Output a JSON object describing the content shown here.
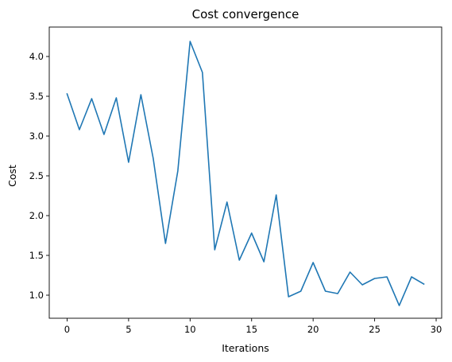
{
  "chart_data": {
    "type": "line",
    "title": "Cost convergence",
    "xlabel": "Iterations",
    "ylabel": "Cost",
    "xlim": [
      -1.45,
      30.45
    ],
    "ylim": [
      0.71,
      4.37
    ],
    "xticks": [
      0,
      5,
      10,
      15,
      20,
      25,
      30
    ],
    "yticks": [
      1.0,
      1.5,
      2.0,
      2.5,
      3.0,
      3.5,
      4.0
    ],
    "grid": false,
    "line_color": "#1f77b4",
    "series": [
      {
        "x": [
          0,
          1,
          2,
          3,
          4,
          5,
          6,
          7,
          8,
          9,
          10,
          11,
          12,
          13,
          14,
          15,
          16,
          17,
          18,
          19,
          20,
          21,
          22,
          23,
          24,
          25,
          26,
          27,
          28,
          29
        ],
        "values": [
          3.53,
          3.08,
          3.47,
          3.02,
          3.48,
          2.67,
          3.52,
          2.72,
          1.65,
          2.56,
          4.19,
          3.8,
          1.57,
          2.17,
          1.44,
          1.78,
          1.42,
          2.26,
          0.98,
          1.05,
          1.41,
          1.05,
          1.02,
          1.29,
          1.13,
          1.21,
          1.23,
          0.87,
          1.23,
          1.14
        ]
      }
    ]
  }
}
